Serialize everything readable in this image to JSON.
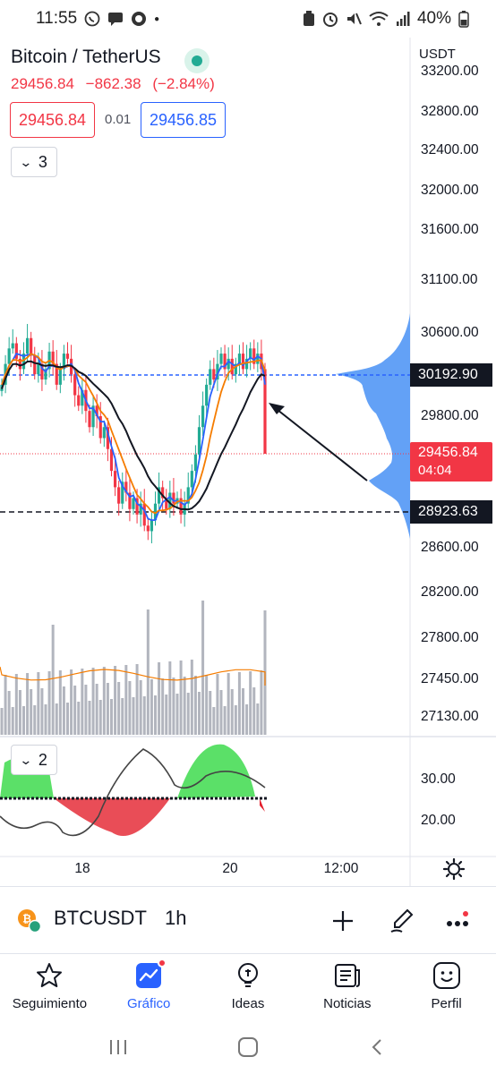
{
  "status_bar": {
    "time": "11:55",
    "battery": "40%",
    "left_icons": [
      "whatsapp-icon",
      "chat-icon",
      "no-entry-icon",
      "dot"
    ],
    "right_icons": [
      "battery-lock-icon",
      "alarm-icon",
      "mute-icon",
      "wifi-icon",
      "signal-icon",
      "battery-icon"
    ]
  },
  "header": {
    "symbol": "Bitcoin / TetherUS",
    "last_price": "29456.84",
    "change": "−862.38",
    "change_pct": "(−2.84%)",
    "bid": "29456.84",
    "spread": "0.01",
    "ask": "29456.85",
    "indicators_count": "3"
  },
  "price_axis": {
    "currency": "USDT",
    "labels": [
      "33200.00",
      "32800.00",
      "32400.00",
      "32000.00",
      "31600.00",
      "31100.00",
      "30600.00",
      "29800.00",
      "28600.00",
      "28200.00",
      "27800.00",
      "27450.00",
      "27130.00"
    ],
    "hline_tag": "30192.90",
    "current_price_tag": "29456.84",
    "countdown": "04:04",
    "support_tag": "28923.63"
  },
  "oscillator": {
    "collapse_count": "2",
    "labels": [
      "30.00",
      "20.00"
    ]
  },
  "time_axis": {
    "labels": [
      "18",
      "20",
      "12:00"
    ]
  },
  "toolbar": {
    "ticker": "BTCUSDT",
    "interval": "1h"
  },
  "bottom_nav": [
    {
      "label": "Seguimiento",
      "icon": "star-icon",
      "active": false
    },
    {
      "label": "Gráfico",
      "icon": "chart-icon",
      "active": true
    },
    {
      "label": "Ideas",
      "icon": "lightbulb-icon",
      "active": false
    },
    {
      "label": "Noticias",
      "icon": "news-icon",
      "active": false
    },
    {
      "label": "Perfil",
      "icon": "smile-icon",
      "active": false
    }
  ],
  "colors": {
    "up": "#22ab94",
    "down": "#f23645",
    "accent": "#2962ff",
    "volume_profile": "#5b9cf6",
    "ma_blue": "#2962ff",
    "ma_orange": "#f57c00",
    "ma_black": "#131722"
  },
  "chart_data": {
    "type": "candlestick",
    "symbol": "BTCUSDT",
    "interval": "1h",
    "price_range": [
      28600,
      33200
    ],
    "close_series": [
      30100,
      30300,
      30450,
      30500,
      30350,
      30250,
      30400,
      30550,
      30380,
      30200,
      30300,
      30150,
      30250,
      30420,
      30300,
      30100,
      30250,
      30400,
      30350,
      30200,
      30000,
      29900,
      30050,
      29850,
      29700,
      29900,
      29800,
      29600,
      29700,
      29500,
      29300,
      29150,
      29000,
      29200,
      29100,
      28950,
      29050,
      28900,
      29000,
      28800,
      28750,
      28850,
      29000,
      29150,
      29050,
      28950,
      29100,
      29000,
      29050,
      28900,
      29000,
      29150,
      29300,
      29450,
      29700,
      29900,
      30100,
      30250,
      30150,
      30300,
      30400,
      30250,
      30350,
      30200,
      30300,
      30400,
      30250,
      30350,
      30450,
      30300,
      30400,
      30250,
      29456.84
    ],
    "horizontal_lines": [
      30192.9,
      28923.63
    ],
    "last_price": 29456.84
  }
}
